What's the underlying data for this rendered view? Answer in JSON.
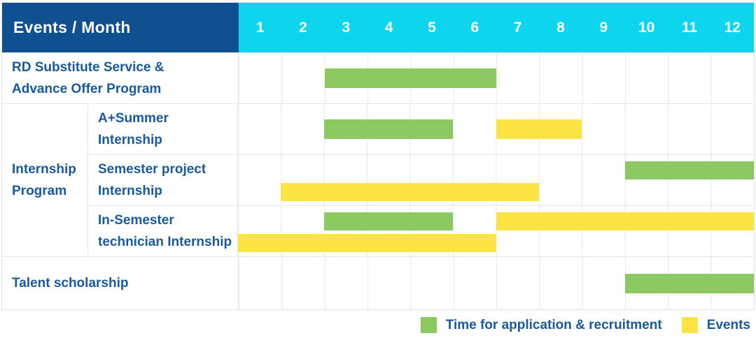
{
  "header": {
    "label": "Events / Month",
    "months": [
      "1",
      "2",
      "3",
      "4",
      "5",
      "6",
      "7",
      "8",
      "9",
      "10",
      "11",
      "12"
    ]
  },
  "colors": {
    "header_bg": "#0f5190",
    "month_header_bg": "#0ed5ee",
    "application_green": "#8cc963",
    "events_yellow": "#fde445",
    "label_text": "#185a9e",
    "header_text": "#ffffff",
    "grid_line": "#e9e9e9"
  },
  "chart_data": {
    "type": "gantt",
    "title": "Events / Month",
    "x_axis": {
      "label": "Month",
      "ticks": [
        1,
        2,
        3,
        4,
        5,
        6,
        7,
        8,
        9,
        10,
        11,
        12
      ],
      "range": [
        1,
        12
      ]
    },
    "grid": true,
    "rows": [
      {
        "group": null,
        "label": "RD Substitute Service & Advance Offer Program",
        "bars": [
          {
            "series": "application",
            "start_month": 3,
            "end_month": 6,
            "line": 1
          }
        ]
      },
      {
        "group": "Internship Program",
        "label": "A+Summer Internship",
        "bars": [
          {
            "series": "application",
            "start_month": 3,
            "end_month": 5,
            "line": 1
          },
          {
            "series": "events",
            "start_month": 7,
            "end_month": 8,
            "line": 1
          }
        ]
      },
      {
        "group": "Internship Program",
        "label": "Semester project Internship",
        "bars": [
          {
            "series": "application",
            "start_month": 10,
            "end_month": 12,
            "line": 1
          },
          {
            "series": "events",
            "start_month": 2,
            "end_month": 7,
            "line": 2
          }
        ]
      },
      {
        "group": "Internship Program",
        "label": "In-Semester technician Internship",
        "bars": [
          {
            "series": "application",
            "start_month": 3,
            "end_month": 5,
            "line": 1
          },
          {
            "series": "events",
            "start_month": 7,
            "end_month": 12,
            "line": 1
          },
          {
            "series": "events",
            "start_month": 1,
            "end_month": 6,
            "line": 2
          }
        ]
      },
      {
        "group": null,
        "label": "Talent scholarship",
        "bars": [
          {
            "series": "application",
            "start_month": 10,
            "end_month": 12,
            "line": 1
          }
        ]
      }
    ],
    "legend": [
      {
        "series": "application",
        "label": "Time for application & recruitment",
        "color": "#8cc963"
      },
      {
        "series": "events",
        "label": "Events",
        "color": "#fde445"
      }
    ],
    "legend_position": "bottom-right"
  }
}
